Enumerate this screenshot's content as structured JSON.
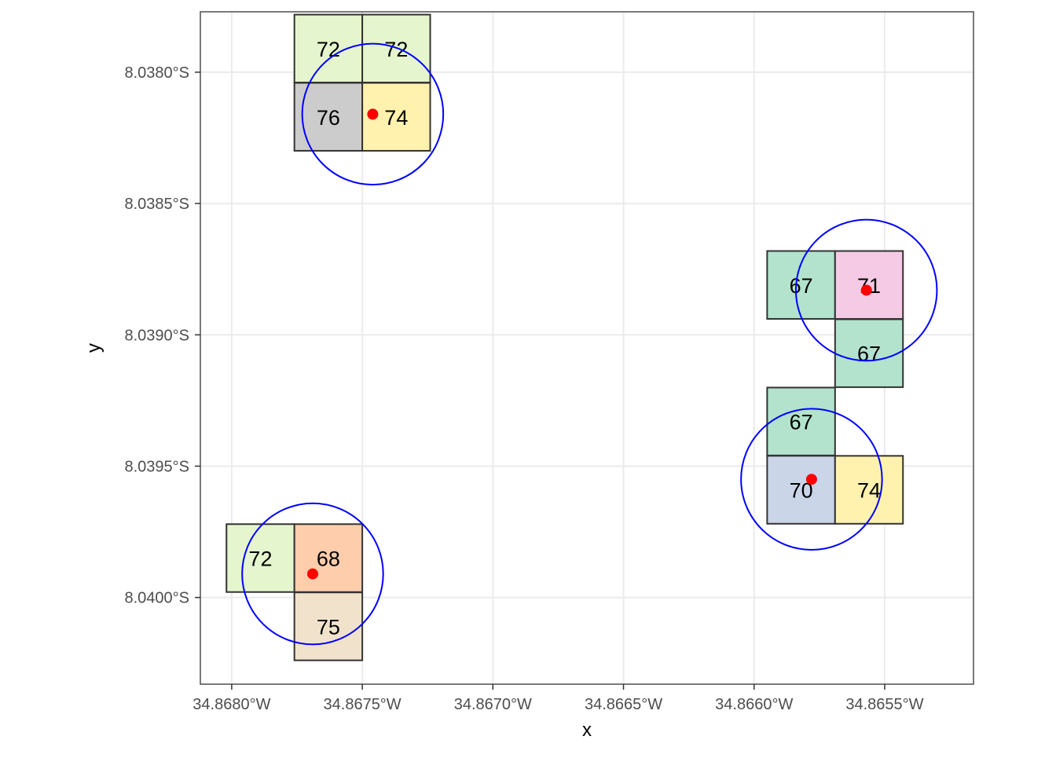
{
  "chart_data": {
    "type": "map",
    "xlabel": "x",
    "ylabel": "y",
    "xlim": [
      -34.86812,
      -34.86516
    ],
    "ylim": [
      -8.04033,
      -8.03777
    ],
    "x_ticks": [
      {
        "value": -34.868,
        "label": "34.8680°W"
      },
      {
        "value": -34.8675,
        "label": "34.8675°W"
      },
      {
        "value": -34.867,
        "label": "34.8670°W"
      },
      {
        "value": -34.8665,
        "label": "34.8665°W"
      },
      {
        "value": -34.866,
        "label": "34.8660°W"
      },
      {
        "value": -34.8655,
        "label": "34.8655°W"
      }
    ],
    "y_ticks": [
      {
        "value": -8.038,
        "label": "8.0380°S"
      },
      {
        "value": -8.0385,
        "label": "8.0385°S"
      },
      {
        "value": -8.039,
        "label": "8.0390°S"
      },
      {
        "value": -8.0395,
        "label": "8.0395°S"
      },
      {
        "value": -8.04,
        "label": "8.0400°S"
      }
    ],
    "grid": true,
    "cell_size_deg": 0.00026,
    "colors": {
      "grid": "#ebebeb",
      "panel_border": "#333333",
      "cell_border": "#333333",
      "circle": "#0000ff",
      "point": "#ff0000"
    },
    "cells": [
      {
        "x": -34.86763,
        "y": -8.03791,
        "value": "72",
        "color": "#e5f5cd"
      },
      {
        "x": -34.86737,
        "y": -8.03791,
        "value": "72",
        "color": "#e5f5cd"
      },
      {
        "x": -34.86763,
        "y": -8.03817,
        "value": "76",
        "color": "#cccccc"
      },
      {
        "x": -34.86737,
        "y": -8.03817,
        "value": "74",
        "color": "#fff2ae"
      },
      {
        "x": -34.86582,
        "y": -8.03881,
        "value": "67",
        "color": "#b3e2cd"
      },
      {
        "x": -34.86556,
        "y": -8.03881,
        "value": "71",
        "color": "#f4cae4"
      },
      {
        "x": -34.86556,
        "y": -8.03907,
        "value": "67",
        "color": "#b3e2cd"
      },
      {
        "x": -34.86582,
        "y": -8.03933,
        "value": "67",
        "color": "#b3e2cd"
      },
      {
        "x": -34.86582,
        "y": -8.03959,
        "value": "70",
        "color": "#cbd5e8"
      },
      {
        "x": -34.86556,
        "y": -8.03959,
        "value": "74",
        "color": "#fff2ae"
      },
      {
        "x": -34.86789,
        "y": -8.03985,
        "value": "72",
        "color": "#e5f5cd"
      },
      {
        "x": -34.86763,
        "y": -8.03985,
        "value": "68",
        "color": "#fdcdac"
      },
      {
        "x": -34.86763,
        "y": -8.04011,
        "value": "75",
        "color": "#f1e2cc"
      }
    ],
    "points": [
      {
        "x": -34.86746,
        "y": -8.03816
      },
      {
        "x": -34.86557,
        "y": -8.03883
      },
      {
        "x": -34.86578,
        "y": -8.03955
      },
      {
        "x": -34.86769,
        "y": -8.03991
      }
    ],
    "circle_radius_deg": 0.00027
  }
}
